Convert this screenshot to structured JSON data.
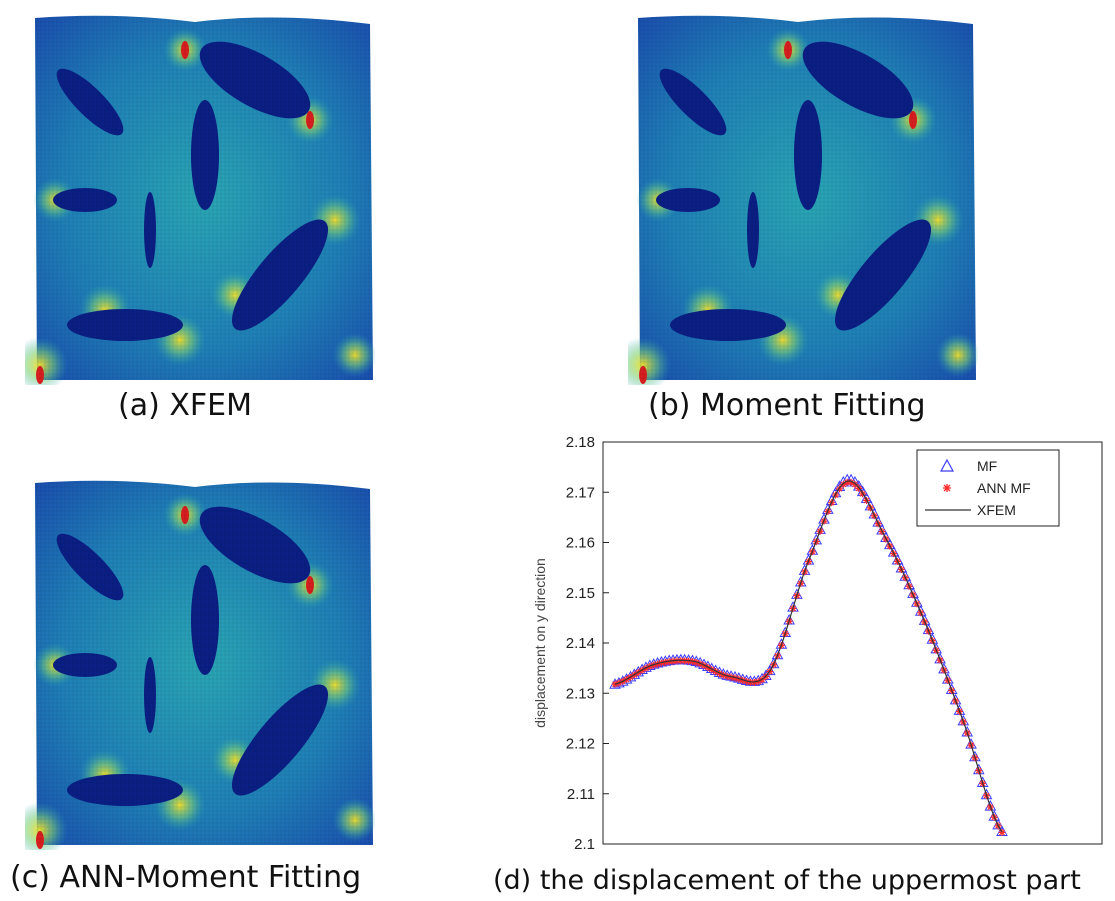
{
  "captions": {
    "a": "(a) XFEM",
    "b": "(b) Moment Fitting",
    "c": "(c) ANN-Moment Fitting",
    "d_prefix": "(d)",
    "d_text": "the displacement of the uppermost part"
  },
  "colors": {
    "field_low": "#12239c",
    "field_mid": "#2aa7b6",
    "field_hi": "#f5e22c",
    "field_peak": "#d81e1e",
    "inclusion": "#0b1f86",
    "mf_marker": "#3b3bff",
    "ann_marker": "#ff2a2a",
    "xfem_line": "#333333"
  },
  "chart_data": {
    "type": "line",
    "title": "",
    "xlabel": "",
    "ylabel": "displacement on y direction",
    "ylim": [
      2.1,
      2.18
    ],
    "yticks": [
      "2.1",
      "2.11",
      "2.12",
      "2.13",
      "2.14",
      "2.15",
      "2.16",
      "2.17",
      "2.18"
    ],
    "xlim": [
      0,
      1
    ],
    "grid": false,
    "legend_position": "top-right",
    "x": [
      0.0,
      0.1,
      0.2,
      0.3,
      0.4,
      0.5,
      0.6,
      0.7,
      0.8,
      0.9,
      1.0
    ],
    "series": [
      {
        "name": "MF",
        "marker": "triangle",
        "values": [
          2.1318,
          2.1358,
          2.1365,
          2.1334,
          2.1345,
          2.1565,
          2.1725,
          2.161,
          2.1445,
          2.1245,
          2.1025
        ]
      },
      {
        "name": "ANN MF",
        "marker": "asterisk",
        "values": [
          2.1318,
          2.1356,
          2.1363,
          2.1332,
          2.1343,
          2.1562,
          2.172,
          2.1607,
          2.1442,
          2.1243,
          2.1023
        ]
      },
      {
        "name": "XFEM",
        "marker": "line",
        "values": [
          2.1318,
          2.1357,
          2.1364,
          2.1333,
          2.1344,
          2.1563,
          2.1722,
          2.1608,
          2.1443,
          2.1244,
          2.1024
        ]
      }
    ]
  }
}
